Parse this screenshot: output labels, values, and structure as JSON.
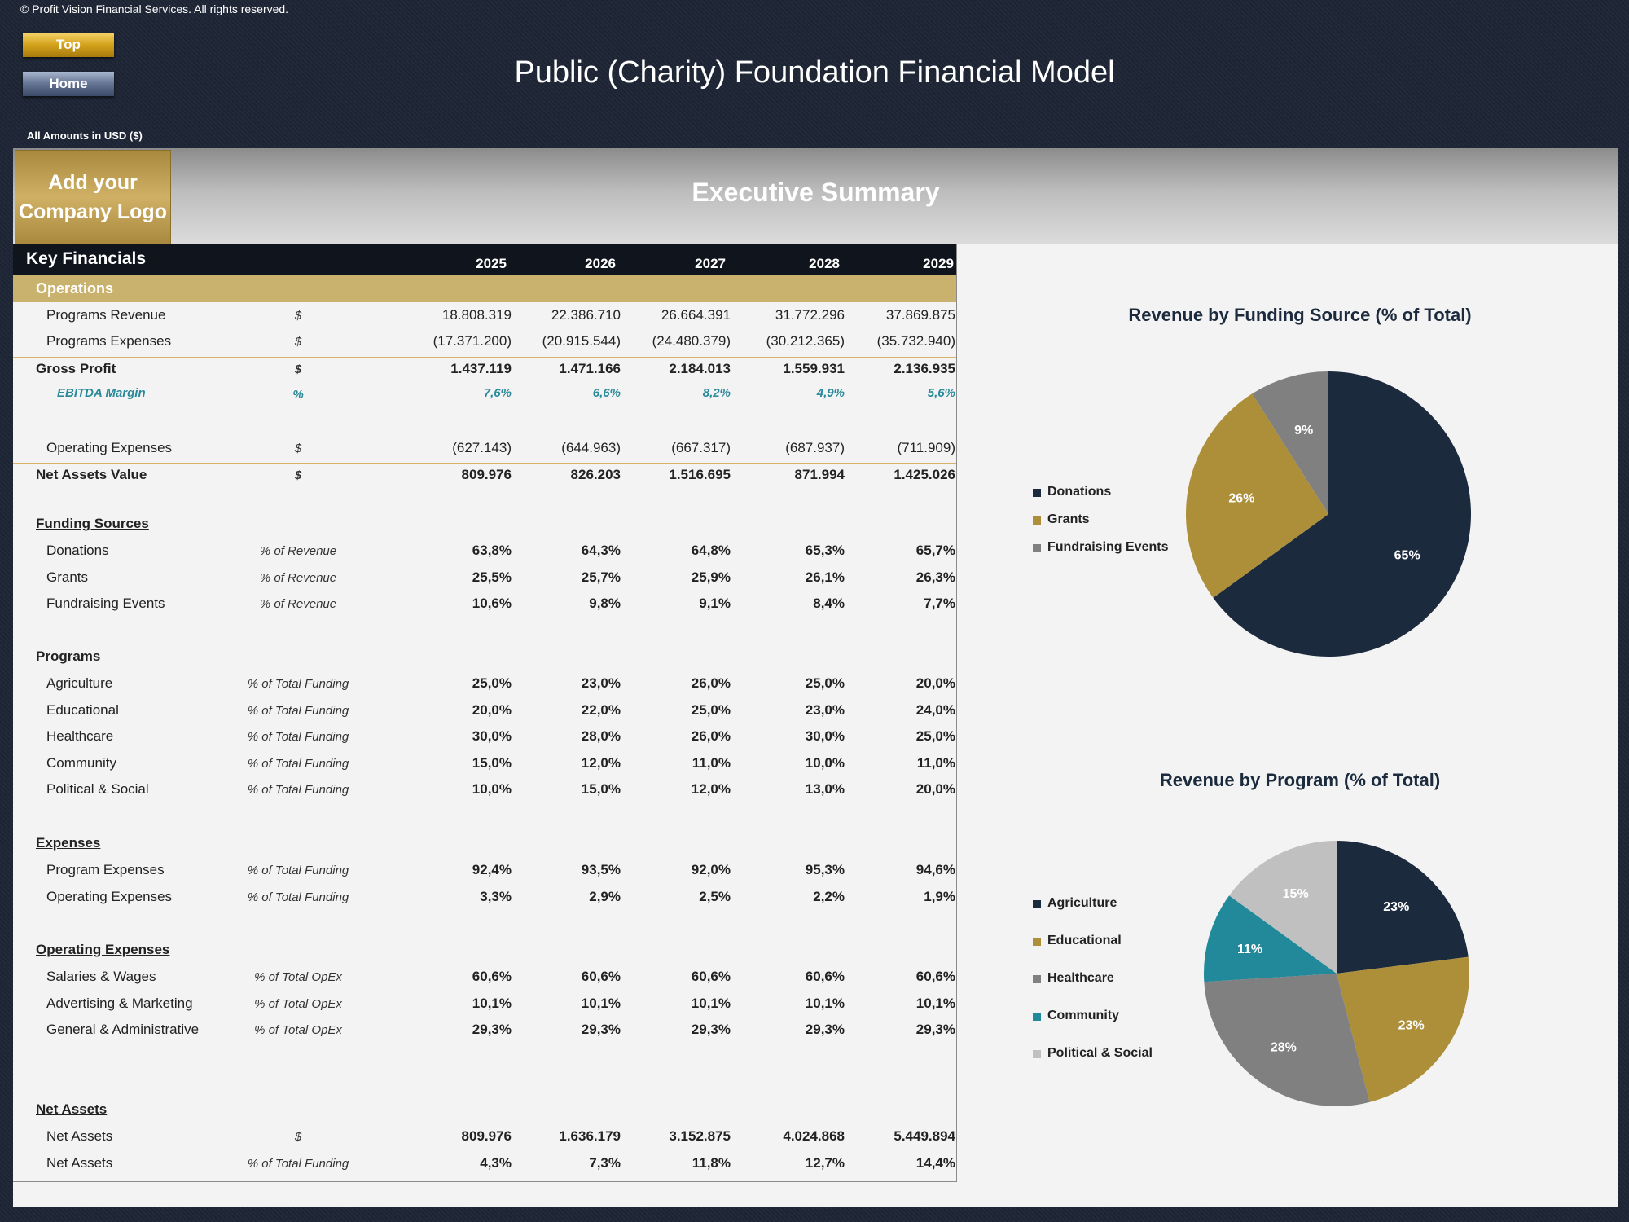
{
  "header": {
    "copyright": "© Profit Vision Financial Services. All rights reserved.",
    "top_button": "Top",
    "home_button": "Home",
    "title": "Public (Charity) Foundation Financial Model",
    "amounts_note": "All Amounts in  USD ($)"
  },
  "banner": {
    "logo_line1": "Add your",
    "logo_line2": "Company Logo",
    "title": "Executive Summary"
  },
  "key_financials": {
    "title": "Key Financials",
    "years": [
      "2025",
      "2026",
      "2027",
      "2028",
      "2029"
    ],
    "operations_label": "Operations",
    "operations_rows": [
      {
        "label": "Programs Revenue",
        "unit": "$",
        "values": [
          "18.808.319",
          "22.386.710",
          "26.664.391",
          "31.772.296",
          "37.869.875"
        ],
        "style": "normal"
      },
      {
        "label": "Programs Expenses",
        "unit": "$",
        "values": [
          "(17.371.200)",
          "(20.915.544)",
          "(24.480.379)",
          "(30.212.365)",
          "(35.732.940)"
        ],
        "style": "normal"
      },
      {
        "label": "Gross Profit",
        "unit": "$",
        "values": [
          "1.437.119",
          "1.471.166",
          "2.184.013",
          "1.559.931",
          "2.136.935"
        ],
        "style": "bold"
      },
      {
        "label": "EBITDA Margin",
        "unit": "%",
        "values": [
          "7,6%",
          "6,6%",
          "8,2%",
          "4,9%",
          "5,6%"
        ],
        "style": "margin"
      },
      {
        "label": "Operating Expenses",
        "unit": "$",
        "values": [
          "(627.143)",
          "(644.963)",
          "(667.317)",
          "(687.937)",
          "(711.909)"
        ],
        "style": "normal"
      },
      {
        "label": "Net Assets Value",
        "unit": "$",
        "values": [
          "809.976",
          "826.203",
          "1.516.695",
          "871.994",
          "1.425.026"
        ],
        "style": "bold"
      }
    ],
    "sections": [
      {
        "title": "Funding Sources",
        "rows": [
          {
            "label": "Donations",
            "unit": "% of Revenue",
            "values": [
              "63,8%",
              "64,3%",
              "64,8%",
              "65,3%",
              "65,7%"
            ]
          },
          {
            "label": "Grants",
            "unit": "% of Revenue",
            "values": [
              "25,5%",
              "25,7%",
              "25,9%",
              "26,1%",
              "26,3%"
            ]
          },
          {
            "label": "Fundraising Events",
            "unit": "% of Revenue",
            "values": [
              "10,6%",
              "9,8%",
              "9,1%",
              "8,4%",
              "7,7%"
            ]
          }
        ]
      },
      {
        "title": "Programs",
        "rows": [
          {
            "label": "Agriculture",
            "unit": "% of Total Funding",
            "values": [
              "25,0%",
              "23,0%",
              "26,0%",
              "25,0%",
              "20,0%"
            ]
          },
          {
            "label": "Educational",
            "unit": "% of Total Funding",
            "values": [
              "20,0%",
              "22,0%",
              "25,0%",
              "23,0%",
              "24,0%"
            ]
          },
          {
            "label": "Healthcare",
            "unit": "% of Total Funding",
            "values": [
              "30,0%",
              "28,0%",
              "26,0%",
              "30,0%",
              "25,0%"
            ]
          },
          {
            "label": "Community",
            "unit": "% of Total Funding",
            "values": [
              "15,0%",
              "12,0%",
              "11,0%",
              "10,0%",
              "11,0%"
            ]
          },
          {
            "label": "Political & Social",
            "unit": "% of Total Funding",
            "values": [
              "10,0%",
              "15,0%",
              "12,0%",
              "13,0%",
              "20,0%"
            ]
          }
        ]
      },
      {
        "title": "Expenses",
        "rows": [
          {
            "label": "Program Expenses",
            "unit": "% of Total Funding",
            "values": [
              "92,4%",
              "93,5%",
              "92,0%",
              "95,3%",
              "94,6%"
            ]
          },
          {
            "label": "Operating Expenses",
            "unit": "% of Total Funding",
            "values": [
              "3,3%",
              "2,9%",
              "2,5%",
              "2,2%",
              "1,9%"
            ]
          }
        ]
      },
      {
        "title": "Operating Expenses",
        "rows": [
          {
            "label": "Salaries & Wages",
            "unit": "% of Total OpEx",
            "values": [
              "60,6%",
              "60,6%",
              "60,6%",
              "60,6%",
              "60,6%"
            ]
          },
          {
            "label": "Advertising & Marketing",
            "unit": "% of Total OpEx",
            "values": [
              "10,1%",
              "10,1%",
              "10,1%",
              "10,1%",
              "10,1%"
            ]
          },
          {
            "label": "General & Administrative",
            "unit": "% of Total OpEx",
            "values": [
              "29,3%",
              "29,3%",
              "29,3%",
              "29,3%",
              "29,3%"
            ]
          }
        ]
      },
      {
        "title": "Net Assets",
        "rows": [
          {
            "label": "Net Assets",
            "unit": "$",
            "values": [
              "809.976",
              "1.636.179",
              "3.152.875",
              "4.024.868",
              "5.449.894"
            ]
          },
          {
            "label": "Net Assets",
            "unit": "% of Total Funding",
            "values": [
              "4,3%",
              "7,3%",
              "11,8%",
              "12,7%",
              "14,4%"
            ]
          }
        ]
      }
    ]
  },
  "chart_data": [
    {
      "type": "pie",
      "title": "Revenue by Funding Source (% of Total)",
      "categories": [
        "Donations",
        "Grants",
        "Fundraising Events"
      ],
      "values": [
        65,
        26,
        9
      ],
      "labels": [
        "65%",
        "26%",
        "9%"
      ],
      "colors": [
        "#1c2a3e",
        "#ad8f3a",
        "#808080"
      ],
      "legend": "left"
    },
    {
      "type": "pie",
      "title": "Revenue by Program (% of Total)",
      "categories": [
        "Agriculture",
        "Educational",
        "Healthcare",
        "Community",
        "Political & Social"
      ],
      "values": [
        23,
        23,
        28,
        11,
        15
      ],
      "labels": [
        "23%",
        "23%",
        "28%",
        "11%",
        "15%"
      ],
      "colors": [
        "#1c2a3e",
        "#ad8f3a",
        "#808080",
        "#21899a",
        "#c0c0c0"
      ],
      "legend": "left"
    }
  ]
}
